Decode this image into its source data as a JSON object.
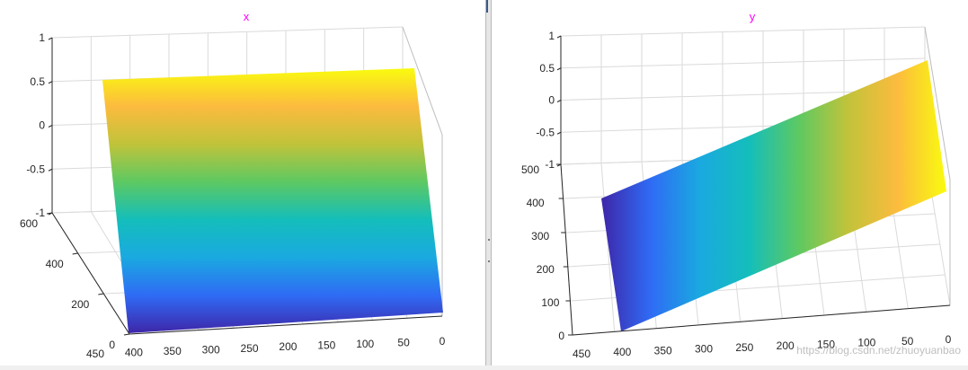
{
  "chart_data": [
    {
      "type": "surface",
      "title": "x",
      "z_ticks": [
        "1",
        "0.5",
        "0",
        "-0.5",
        "-1"
      ],
      "y_ticks": [
        "600",
        "400",
        "200",
        "0"
      ],
      "x_ticks": [
        "450",
        "400",
        "350",
        "300",
        "250",
        "200",
        "150",
        "100",
        "50",
        "0"
      ],
      "zlim": [
        -1,
        1
      ],
      "ylim": [
        0,
        600
      ],
      "xlim": [
        0,
        450
      ],
      "colormap": [
        "#3e26a8",
        "#2f6bf5",
        "#1aa9e0",
        "#14bebb",
        "#5dc962",
        "#c1c33a",
        "#fcbb3e",
        "#f9fb0e"
      ],
      "color_gradient_direction": "along y axis (yellow at far edge, blue at near edge)"
    },
    {
      "type": "surface",
      "title": "y",
      "z_ticks": [
        "1",
        "0.5",
        "0",
        "-0.5",
        "-1"
      ],
      "y_ticks": [
        "500",
        "400",
        "300",
        "200",
        "100",
        "0"
      ],
      "x_ticks": [
        "450",
        "400",
        "350",
        "300",
        "250",
        "200",
        "150",
        "100",
        "50",
        "0"
      ],
      "zlim": [
        -1,
        1
      ],
      "ylim": [
        0,
        500
      ],
      "xlim": [
        0,
        450
      ],
      "colormap": [
        "#3e26a8",
        "#2f6bf5",
        "#1aa9e0",
        "#14bebb",
        "#5dc962",
        "#c1c33a",
        "#fcbb3e",
        "#f9fb0e"
      ],
      "color_gradient_direction": "along x axis (blue at x=450, yellow at x=0)"
    }
  ],
  "watermark": "https://blog.csdn.net/zhuoyuanbao"
}
